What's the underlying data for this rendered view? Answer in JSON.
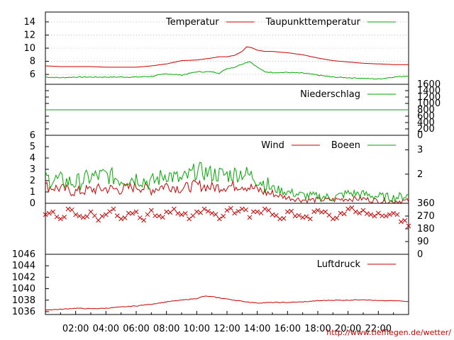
{
  "chart_data": [
    {
      "type": "line",
      "panel": "temperature",
      "ylim": [
        4.5,
        15.5
      ],
      "yticks": [
        "6",
        "8",
        "10",
        "12",
        "14"
      ],
      "grid": "dotted horizontal",
      "legend_placement": "top-right",
      "series": [
        {
          "name": "Temperatur",
          "color": "#cc0000",
          "x": [
            0,
            1,
            2,
            3,
            4,
            5,
            6,
            7,
            8,
            9,
            10,
            11,
            11.5,
            12,
            12.5,
            13,
            13.3,
            13.6,
            14,
            14.5,
            15,
            16,
            17,
            18,
            19,
            20,
            21,
            22,
            23,
            24
          ],
          "values": [
            7.3,
            7.2,
            7.2,
            7.2,
            7.1,
            7.1,
            7.1,
            7.3,
            7.6,
            8.1,
            8.2,
            8.5,
            8.7,
            8.7,
            8.9,
            9.5,
            10.2,
            10.1,
            9.7,
            9.5,
            9.5,
            9.3,
            9.0,
            8.5,
            8.1,
            7.9,
            7.7,
            7.6,
            7.5,
            7.5
          ]
        },
        {
          "name": "Taupunkttemperatur",
          "color": "#00aa00",
          "x": [
            0,
            1,
            2,
            3,
            4,
            5,
            6,
            7,
            8,
            9,
            10,
            11,
            11.5,
            12,
            12.5,
            13,
            13.5,
            14,
            14.5,
            15,
            16,
            17,
            18,
            19,
            20,
            21,
            22,
            23,
            24
          ],
          "values": [
            5.6,
            5.5,
            5.6,
            5.6,
            5.6,
            5.6,
            5.6,
            5.7,
            6.1,
            5.9,
            6.4,
            6.4,
            6.2,
            6.9,
            7.1,
            7.6,
            8.0,
            7.1,
            6.4,
            6.3,
            6.3,
            6.2,
            5.9,
            5.6,
            5.5,
            5.4,
            5.3,
            5.6,
            5.8
          ]
        }
      ]
    },
    {
      "type": "line",
      "panel": "precipitation",
      "ylim": [
        0,
        1600
      ],
      "yticks": [
        "0",
        "200",
        "400",
        "600",
        "800",
        "1000",
        "1200",
        "1400",
        "1600"
      ],
      "legend_placement": "top-right",
      "series": [
        {
          "name": "Niederschlag",
          "color": "#00aa00",
          "x": [
            0,
            24
          ],
          "values": [
            800,
            800
          ]
        }
      ]
    },
    {
      "type": "line",
      "panel": "wind",
      "ylim": [
        0,
        6
      ],
      "yticks": [
        "0",
        "1",
        "2",
        "3",
        "4",
        "5",
        "6"
      ],
      "yticks_right": [
        "2",
        "3"
      ],
      "legend_placement": "top-right",
      "series": [
        {
          "name": "Wind",
          "color": "#cc0000",
          "x": [
            0,
            1,
            2,
            3,
            4,
            5,
            6,
            7,
            8,
            9,
            10,
            11,
            12,
            13,
            14,
            15,
            16,
            17,
            18,
            19,
            20,
            21,
            22,
            23,
            24
          ],
          "values": [
            1.5,
            1.3,
            1.0,
            1.2,
            1.3,
            1.2,
            1.5,
            1.2,
            1.6,
            1.3,
            1.6,
            1.4,
            1.5,
            1.6,
            1.2,
            0.8,
            0.5,
            0.3,
            0.3,
            0.3,
            0.4,
            0.4,
            0.2,
            0.2,
            0.2
          ]
        },
        {
          "name": "Boeen",
          "color": "#00aa00",
          "x": [
            0,
            1,
            2,
            3,
            4,
            5,
            6,
            7,
            8,
            9,
            10,
            11,
            12,
            13,
            14,
            15,
            16,
            17,
            18,
            19,
            20,
            21,
            22,
            23,
            24
          ],
          "values": [
            2.2,
            2.0,
            1.8,
            2.3,
            2.5,
            2.1,
            2.3,
            1.8,
            2.6,
            2.0,
            2.9,
            2.6,
            2.5,
            2.7,
            2.2,
            1.3,
            1.0,
            0.7,
            0.6,
            0.5,
            0.9,
            0.8,
            0.6,
            0.5,
            0.7
          ]
        }
      ]
    },
    {
      "type": "scatter",
      "panel": "wind_direction",
      "ylim": [
        0,
        360
      ],
      "yticks_right": [
        "0",
        "90",
        "180",
        "270",
        "360"
      ],
      "series": [
        {
          "name": "",
          "color": "#cc0000",
          "marker": "x",
          "x": [
            0,
            0.5,
            1,
            1.5,
            2,
            2.5,
            3,
            3.5,
            4,
            4.5,
            5,
            5.5,
            6,
            6.5,
            7,
            7.5,
            8,
            8.5,
            9,
            9.5,
            10,
            10.5,
            11,
            11.5,
            12,
            12.5,
            13,
            13.5,
            14,
            14.5,
            15,
            15.5,
            16,
            16.5,
            17,
            17.5,
            18,
            18.5,
            19,
            19.5,
            20,
            20.5,
            21,
            21.5,
            22,
            22.5,
            23,
            23.5,
            24
          ],
          "values": [
            280,
            300,
            250,
            320,
            280,
            260,
            300,
            240,
            280,
            320,
            250,
            290,
            300,
            240,
            310,
            270,
            300,
            320,
            280,
            250,
            300,
            320,
            290,
            250,
            310,
            290,
            320,
            260,
            300,
            320,
            280,
            250,
            300,
            270,
            260,
            250,
            310,
            300,
            250,
            290,
            320,
            300,
            310,
            280,
            290,
            270,
            290,
            230,
            200
          ]
        }
      ]
    },
    {
      "type": "line",
      "panel": "pressure",
      "ylim": [
        1035.5,
        1046
      ],
      "yticks": [
        "1036",
        "1038",
        "1040",
        "1042",
        "1044",
        "1046"
      ],
      "legend_placement": "top-right",
      "series": [
        {
          "name": "Luftdruck",
          "color": "#cc0000",
          "x": [
            0,
            1,
            2,
            3,
            4,
            5,
            6,
            7,
            8,
            9,
            10,
            10.5,
            11,
            12,
            13,
            14,
            15,
            16,
            17,
            18,
            19,
            20,
            21,
            22,
            23,
            24
          ],
          "values": [
            1036.3,
            1036.4,
            1036.6,
            1036.5,
            1036.6,
            1036.8,
            1037.0,
            1037.3,
            1037.7,
            1038.0,
            1038.3,
            1038.7,
            1038.6,
            1038.2,
            1037.8,
            1037.5,
            1037.6,
            1037.6,
            1037.7,
            1037.9,
            1038.0,
            1038.0,
            1038.1,
            1037.9,
            1037.9,
            1037.8
          ]
        }
      ]
    }
  ],
  "x_ticks": [
    "02:00",
    "04:00",
    "06:00",
    "08:00",
    "10:00",
    "12:00",
    "14:00",
    "16:00",
    "18:00",
    "20:00",
    "22:00"
  ],
  "credit": "http://www.tiefflegen.de/wetter/",
  "colors": {
    "red": "#cc0000",
    "green": "#00aa00"
  }
}
